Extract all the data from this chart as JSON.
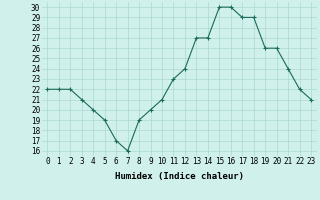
{
  "x": [
    0,
    1,
    2,
    3,
    4,
    5,
    6,
    7,
    8,
    9,
    10,
    11,
    12,
    13,
    14,
    15,
    16,
    17,
    18,
    19,
    20,
    21,
    22,
    23
  ],
  "y": [
    22,
    22,
    22,
    21,
    20,
    19,
    17,
    16,
    19,
    20,
    21,
    23,
    24,
    27,
    27,
    30,
    30,
    29,
    29,
    26,
    26,
    24,
    22,
    21
  ],
  "line_color": "#1a6b5a",
  "bg_color": "#cff0eb",
  "grid_color": "#aad8d0",
  "xlabel": "Humidex (Indice chaleur)",
  "ylabel_ticks": [
    16,
    17,
    18,
    19,
    20,
    21,
    22,
    23,
    24,
    25,
    26,
    27,
    28,
    29,
    30
  ],
  "ylim": [
    15.5,
    30.5
  ],
  "xlim": [
    -0.5,
    23.5
  ],
  "tick_fontsize": 5.5,
  "xlabel_fontsize": 6.5
}
